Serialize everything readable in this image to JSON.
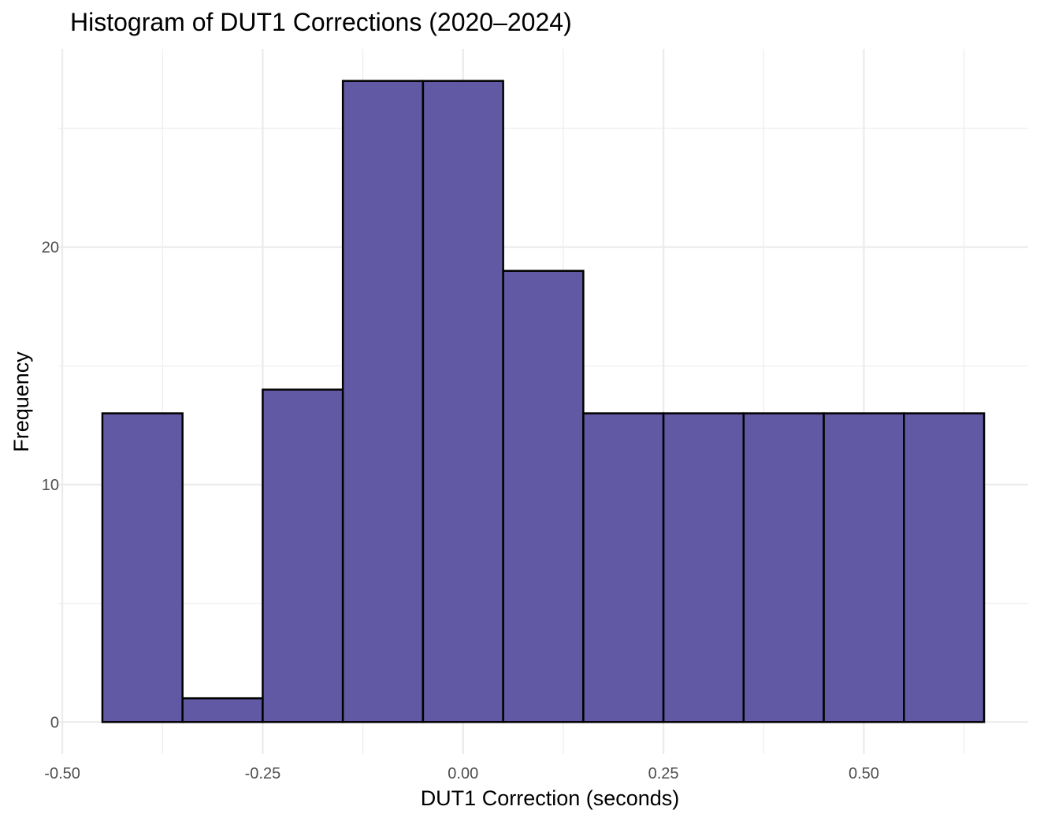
{
  "chart_data": {
    "type": "bar",
    "title": "Histogram of DUT1 Corrections (2020–2024)",
    "xlabel": "DUT1 Correction (seconds)",
    "ylabel": "Frequency",
    "bin_width": 0.1,
    "bins": [
      {
        "x_min": -0.45,
        "x_max": -0.35,
        "count": 13
      },
      {
        "x_min": -0.35,
        "x_max": -0.25,
        "count": 1
      },
      {
        "x_min": -0.25,
        "x_max": -0.15,
        "count": 14
      },
      {
        "x_min": -0.15,
        "x_max": -0.05,
        "count": 27
      },
      {
        "x_min": -0.05,
        "x_max": 0.05,
        "count": 27
      },
      {
        "x_min": 0.05,
        "x_max": 0.15,
        "count": 19
      },
      {
        "x_min": 0.15,
        "x_max": 0.25,
        "count": 13
      },
      {
        "x_min": 0.25,
        "x_max": 0.35,
        "count": 13
      },
      {
        "x_min": 0.35,
        "x_max": 0.45,
        "count": 13
      },
      {
        "x_min": 0.45,
        "x_max": 0.55,
        "count": 13
      },
      {
        "x_min": 0.55,
        "x_max": 0.65,
        "count": 13
      }
    ],
    "xlim": [
      -0.505,
      0.705
    ],
    "ylim": [
      -1.35,
      28.35
    ],
    "x_ticks": [
      -0.5,
      -0.25,
      0.0,
      0.25,
      0.5
    ],
    "x_tick_labels": [
      "-0.50",
      "-0.25",
      "0.00",
      "0.25",
      "0.50"
    ],
    "x_minor_ticks": [
      -0.375,
      -0.125,
      0.125,
      0.375,
      0.625
    ],
    "y_ticks": [
      0,
      10,
      20
    ],
    "y_tick_labels": [
      "0",
      "10",
      "20"
    ],
    "y_minor_ticks": [
      5,
      15,
      25
    ],
    "grid": true,
    "legend": "none",
    "colors": {
      "bar_fill": "#6159a3",
      "bar_outline": "#000000",
      "grid": "#ebebeb",
      "tick_label": "#4d4d4d",
      "background": "#ffffff"
    }
  }
}
